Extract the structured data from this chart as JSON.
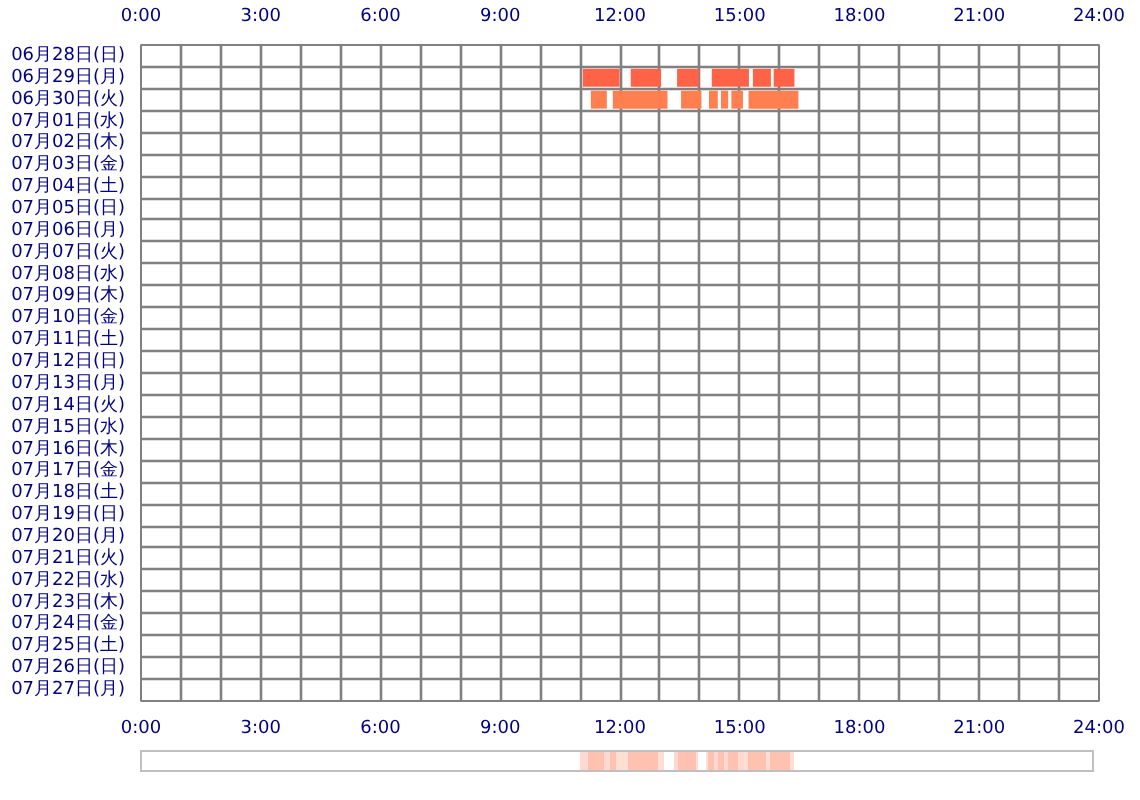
{
  "chart_data": {
    "type": "bar",
    "orientation": "horizontal",
    "grid": true,
    "categories": [
      "06月28日(日)",
      "06月29日(月)",
      "06月30日(火)",
      "07月01日(水)",
      "07月02日(木)",
      "07月03日(金)",
      "07月04日(土)",
      "07月05日(日)",
      "07月06日(月)",
      "07月07日(火)",
      "07月08日(水)",
      "07月09日(木)",
      "07月10日(金)",
      "07月11日(土)",
      "07月12日(日)",
      "07月13日(月)",
      "07月14日(火)",
      "07月15日(水)",
      "07月16日(木)",
      "07月17日(金)",
      "07月18日(土)",
      "07月19日(日)",
      "07月20日(月)",
      "07月21日(火)",
      "07月22日(水)",
      "07月23日(木)",
      "07月24日(金)",
      "07月25日(土)",
      "07月26日(日)",
      "07月27日(月)"
    ],
    "series": [
      {
        "colors": [
          null,
          "#ff6347",
          "#ff7f50",
          null,
          null,
          null,
          null,
          null,
          null,
          null,
          null,
          null,
          null,
          null,
          null,
          null,
          null,
          null,
          null,
          null,
          null,
          null,
          null,
          null,
          null,
          null,
          null,
          null,
          null,
          null
        ],
        "base": [
          null,
          11.07,
          11.27,
          null,
          null,
          null,
          null,
          null,
          null,
          null,
          null,
          null,
          null,
          null,
          null,
          null,
          null,
          null,
          null,
          null,
          null,
          null,
          null,
          null,
          null,
          null,
          null,
          null,
          null,
          null
        ],
        "values": [
          null,
          0.92,
          0.4,
          null,
          null,
          null,
          null,
          null,
          null,
          null,
          null,
          null,
          null,
          null,
          null,
          null,
          null,
          null,
          null,
          null,
          null,
          null,
          null,
          null,
          null,
          null,
          null,
          null,
          null,
          null
        ]
      },
      {
        "colors": [
          null,
          "#ff6347",
          "#ff7f50",
          null,
          null,
          null,
          null,
          null,
          null,
          null,
          null,
          null,
          null,
          null,
          null,
          null,
          null,
          null,
          null,
          null,
          null,
          null,
          null,
          null,
          null,
          null,
          null,
          null,
          null,
          null
        ],
        "base": [
          null,
          12.27,
          11.82,
          null,
          null,
          null,
          null,
          null,
          null,
          null,
          null,
          null,
          null,
          null,
          null,
          null,
          null,
          null,
          null,
          null,
          null,
          null,
          null,
          null,
          null,
          null,
          null,
          null,
          null,
          null
        ],
        "values": [
          null,
          0.76,
          1.37,
          null,
          null,
          null,
          null,
          null,
          null,
          null,
          null,
          null,
          null,
          null,
          null,
          null,
          null,
          null,
          null,
          null,
          null,
          null,
          null,
          null,
          null,
          null,
          null,
          null,
          null,
          null
        ]
      },
      {
        "colors": [
          null,
          "#ff6347",
          "#ff7f50",
          null,
          null,
          null,
          null,
          null,
          null,
          null,
          null,
          null,
          null,
          null,
          null,
          null,
          null,
          null,
          null,
          null,
          null,
          null,
          null,
          null,
          null,
          null,
          null,
          null,
          null,
          null
        ],
        "base": [
          null,
          13.43,
          13.53,
          null,
          null,
          null,
          null,
          null,
          null,
          null,
          null,
          null,
          null,
          null,
          null,
          null,
          null,
          null,
          null,
          null,
          null,
          null,
          null,
          null,
          null,
          null,
          null,
          null,
          null,
          null
        ],
        "values": [
          null,
          0.55,
          0.51,
          null,
          null,
          null,
          null,
          null,
          null,
          null,
          null,
          null,
          null,
          null,
          null,
          null,
          null,
          null,
          null,
          null,
          null,
          null,
          null,
          null,
          null,
          null,
          null,
          null,
          null,
          null
        ]
      },
      {
        "colors": [
          null,
          "#ff6347",
          "#ff7f50",
          null,
          null,
          null,
          null,
          null,
          null,
          null,
          null,
          null,
          null,
          null,
          null,
          null,
          null,
          null,
          null,
          null,
          null,
          null,
          null,
          null,
          null,
          null,
          null,
          null,
          null,
          null
        ],
        "base": [
          null,
          14.3,
          14.23,
          null,
          null,
          null,
          null,
          null,
          null,
          null,
          null,
          null,
          null,
          null,
          null,
          null,
          null,
          null,
          null,
          null,
          null,
          null,
          null,
          null,
          null,
          null,
          null,
          null,
          null,
          null
        ],
        "values": [
          null,
          0.93,
          0.22,
          null,
          null,
          null,
          null,
          null,
          null,
          null,
          null,
          null,
          null,
          null,
          null,
          null,
          null,
          null,
          null,
          null,
          null,
          null,
          null,
          null,
          null,
          null,
          null,
          null,
          null,
          null
        ]
      },
      {
        "colors": [
          null,
          "#ff6347",
          "#ff7f50",
          null,
          null,
          null,
          null,
          null,
          null,
          null,
          null,
          null,
          null,
          null,
          null,
          null,
          null,
          null,
          null,
          null,
          null,
          null,
          null,
          null,
          null,
          null,
          null,
          null,
          null,
          null
        ],
        "base": [
          null,
          15.33,
          14.53,
          null,
          null,
          null,
          null,
          null,
          null,
          null,
          null,
          null,
          null,
          null,
          null,
          null,
          null,
          null,
          null,
          null,
          null,
          null,
          null,
          null,
          null,
          null,
          null,
          null,
          null,
          null
        ],
        "values": [
          null,
          0.45,
          0.18,
          null,
          null,
          null,
          null,
          null,
          null,
          null,
          null,
          null,
          null,
          null,
          null,
          null,
          null,
          null,
          null,
          null,
          null,
          null,
          null,
          null,
          null,
          null,
          null,
          null,
          null,
          null
        ]
      },
      {
        "colors": [
          null,
          "#ff6347",
          "#ff7f50",
          null,
          null,
          null,
          null,
          null,
          null,
          null,
          null,
          null,
          null,
          null,
          null,
          null,
          null,
          null,
          null,
          null,
          null,
          null,
          null,
          null,
          null,
          null,
          null,
          null,
          null,
          null
        ],
        "base": [
          null,
          15.85,
          14.79,
          null,
          null,
          null,
          null,
          null,
          null,
          null,
          null,
          null,
          null,
          null,
          null,
          null,
          null,
          null,
          null,
          null,
          null,
          null,
          null,
          null,
          null,
          null,
          null,
          null,
          null,
          null
        ],
        "values": [
          null,
          0.52,
          0.29,
          null,
          null,
          null,
          null,
          null,
          null,
          null,
          null,
          null,
          null,
          null,
          null,
          null,
          null,
          null,
          null,
          null,
          null,
          null,
          null,
          null,
          null,
          null,
          null,
          null,
          null,
          null
        ]
      },
      {
        "colors": [
          null,
          null,
          "#ff7f50",
          null,
          null,
          null,
          null,
          null,
          null,
          null,
          null,
          null,
          null,
          null,
          null,
          null,
          null,
          null,
          null,
          null,
          null,
          null,
          null,
          null,
          null,
          null,
          null,
          null,
          null,
          null
        ],
        "base": [
          null,
          null,
          15.22,
          null,
          null,
          null,
          null,
          null,
          null,
          null,
          null,
          null,
          null,
          null,
          null,
          null,
          null,
          null,
          null,
          null,
          null,
          null,
          null,
          null,
          null,
          null,
          null,
          null,
          null,
          null
        ],
        "values": [
          null,
          null,
          1.25,
          null,
          null,
          null,
          null,
          null,
          null,
          null,
          null,
          null,
          null,
          null,
          null,
          null,
          null,
          null,
          null,
          null,
          null,
          null,
          null,
          null,
          null,
          null,
          null,
          null,
          null,
          null
        ]
      }
    ],
    "xlim": [
      0,
      24
    ],
    "xticks": [
      {
        "value": 0,
        "label": "0:00"
      },
      {
        "value": 1,
        "label": null
      },
      {
        "value": 2,
        "label": null
      },
      {
        "value": 3,
        "label": "3:00"
      },
      {
        "value": 4,
        "label": null
      },
      {
        "value": 5,
        "label": null
      },
      {
        "value": 6,
        "label": "6:00"
      },
      {
        "value": 7,
        "label": null
      },
      {
        "value": 8,
        "label": null
      },
      {
        "value": 9,
        "label": "9:00"
      },
      {
        "value": 10,
        "label": null
      },
      {
        "value": 11,
        "label": null
      },
      {
        "value": 12,
        "label": "12:00"
      },
      {
        "value": 13,
        "label": null
      },
      {
        "value": 14,
        "label": null
      },
      {
        "value": 15,
        "label": "15:00"
      },
      {
        "value": 16,
        "label": null
      },
      {
        "value": 17,
        "label": null
      },
      {
        "value": 18,
        "label": "18:00"
      },
      {
        "value": 19,
        "label": null
      },
      {
        "value": 20,
        "label": null
      },
      {
        "value": 21,
        "label": "21:00"
      },
      {
        "value": 22,
        "label": null
      },
      {
        "value": 23,
        "label": null
      },
      {
        "value": 24,
        "label": "24:00"
      }
    ],
    "x2lim": [
      0,
      24
    ],
    "x2ticks": [
      {
        "value": 0,
        "label": "0:00"
      },
      {
        "value": 1,
        "label": null
      },
      {
        "value": 2,
        "label": null
      },
      {
        "value": 3,
        "label": "3:00"
      },
      {
        "value": 4,
        "label": null
      },
      {
        "value": 5,
        "label": null
      },
      {
        "value": 6,
        "label": "6:00"
      },
      {
        "value": 7,
        "label": null
      },
      {
        "value": 8,
        "label": null
      },
      {
        "value": 9,
        "label": "9:00"
      },
      {
        "value": 10,
        "label": null
      },
      {
        "value": 11,
        "label": null
      },
      {
        "value": 12,
        "label": "12:00"
      },
      {
        "value": 13,
        "label": null
      },
      {
        "value": 14,
        "label": null
      },
      {
        "value": 15,
        "label": "15:00"
      },
      {
        "value": 16,
        "label": null
      },
      {
        "value": 17,
        "label": null
      },
      {
        "value": 18,
        "label": "18:00"
      },
      {
        "value": 19,
        "label": null
      },
      {
        "value": 20,
        "label": null
      },
      {
        "value": 21,
        "label": "21:00"
      },
      {
        "value": 22,
        "label": null
      },
      {
        "value": 23,
        "label": null
      },
      {
        "value": 24,
        "label": "24:00"
      }
    ]
  }
}
